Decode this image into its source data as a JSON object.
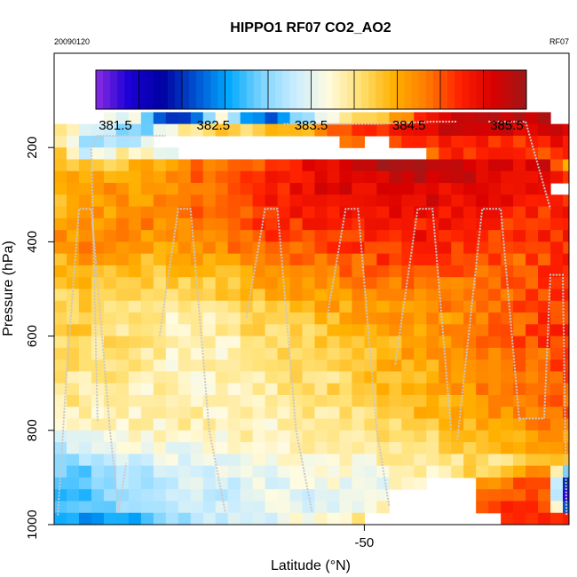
{
  "chart_data": {
    "type": "heatmap",
    "title": "HIPPO1 RF07 CO2_AO2",
    "date_label": "20090120",
    "flight_label": "RF07",
    "xlabel": "Latitude (°N)",
    "ylabel": "Pressure (hPa)",
    "xlim": [
      -25.0,
      -66.5
    ],
    "ylim": [
      1000,
      0
    ],
    "x_ticks": [
      -50
    ],
    "y_ticks": [
      200,
      400,
      600,
      800,
      1000
    ],
    "colorbar": {
      "ticks": [
        381.5,
        382.5,
        383.5,
        384.5,
        385.5
      ],
      "range": [
        381.3,
        385.7
      ],
      "colors": [
        "#8a2be2",
        "#1a00d6",
        "#0000a0",
        "#0050d0",
        "#00a8ff",
        "#7cd4ff",
        "#c8ecff",
        "#fffbe0",
        "#ffe070",
        "#ffb000",
        "#ff7a00",
        "#ff2000",
        "#d80000",
        "#a01818"
      ]
    },
    "grid": {
      "lat_start": -25.0,
      "lat_step": -1.0,
      "ncols": 42,
      "p_edges": [
        125,
        150,
        175,
        200,
        225,
        250,
        275,
        300,
        325,
        350,
        375,
        400,
        425,
        450,
        475,
        500,
        525,
        550,
        575,
        600,
        625,
        650,
        675,
        700,
        725,
        750,
        775,
        800,
        825,
        850,
        875,
        900,
        925,
        950,
        975,
        1000
      ],
      "row_profiles": [
        [
          null,
          null,
          383.7,
          383.4,
          382.0,
          382.2,
          383.8,
          382.5,
          382.2,
          383.1,
          383.6,
          384.1,
          384.2,
          384.5,
          385.3,
          385.4,
          385.5,
          385.5,
          385.5,
          null
        ],
        [
          383.8,
          383.6,
          383.2,
          382.9,
          383.6,
          384.0,
          384.2,
          384.1,
          384.3,
          384.3,
          384.6,
          385.0,
          385.0,
          385.2,
          385.3,
          385.4,
          385.4,
          385.4,
          385.4,
          385.4
        ],
        [
          384.0,
          383.1,
          383.3,
          383.4,
          null,
          null,
          null,
          null,
          null,
          null,
          null,
          384.6,
          null,
          384.9,
          385.1,
          385.1,
          385.1,
          385.0,
          385.1,
          385.1
        ],
        [
          384.2,
          383.3,
          383.8,
          383.9,
          383.5,
          null,
          null,
          null,
          null,
          null,
          null,
          null,
          null,
          null,
          384.8,
          385.0,
          385.0,
          384.9,
          384.9,
          385.0
        ],
        [
          384.3,
          384.1,
          384.2,
          384.3,
          384.5,
          384.7,
          384.7,
          384.8,
          384.8,
          385.2,
          385.3,
          385.5,
          385.6,
          385.6,
          385.5,
          385.4,
          385.3,
          385.3,
          385.4,
          384.5
        ],
        [
          384.4,
          384.3,
          384.4,
          384.5,
          384.6,
          384.7,
          384.8,
          384.9,
          385.0,
          385.2,
          385.3,
          385.4,
          385.4,
          385.5,
          385.5,
          385.4,
          385.3,
          385.3,
          385.2,
          384.8
        ],
        [
          384.3,
          384.4,
          384.5,
          384.4,
          384.5,
          384.6,
          384.8,
          384.9,
          385.0,
          385.2,
          385.3,
          385.3,
          385.3,
          385.3,
          385.3,
          385.3,
          385.2,
          385.1,
          385.1,
          null
        ],
        [
          384.3,
          384.5,
          384.5,
          384.5,
          384.6,
          384.7,
          384.9,
          385.0,
          385.1,
          385.2,
          385.2,
          385.3,
          385.3,
          385.3,
          385.3,
          385.2,
          385.2,
          385.1,
          385.0,
          385.0
        ],
        [
          384.3,
          384.5,
          384.5,
          384.5,
          384.6,
          384.7,
          384.8,
          384.9,
          385.0,
          385.1,
          385.1,
          385.2,
          385.2,
          385.2,
          385.2,
          385.1,
          385.1,
          385.0,
          385.0,
          385.1
        ],
        [
          384.4,
          384.6,
          384.5,
          384.6,
          384.6,
          384.7,
          384.8,
          384.9,
          384.9,
          385.0,
          385.1,
          385.1,
          385.1,
          385.1,
          385.1,
          385.1,
          385.0,
          385.0,
          385.0,
          385.0
        ],
        [
          384.5,
          384.6,
          384.6,
          384.5,
          384.5,
          384.6,
          384.7,
          384.8,
          384.9,
          384.9,
          385.0,
          385.0,
          385.1,
          385.1,
          385.1,
          385.0,
          385.0,
          384.9,
          385.0,
          385.0
        ],
        [
          384.4,
          384.6,
          384.5,
          384.4,
          384.4,
          384.5,
          384.6,
          384.7,
          384.8,
          384.8,
          384.9,
          384.9,
          385.0,
          385.0,
          385.0,
          385.0,
          384.9,
          384.9,
          384.9,
          385.0
        ],
        [
          384.3,
          384.5,
          384.4,
          384.3,
          384.3,
          384.4,
          384.5,
          384.6,
          384.7,
          384.7,
          384.8,
          384.8,
          384.9,
          384.9,
          384.9,
          384.9,
          384.9,
          384.8,
          384.9,
          385.0
        ],
        [
          384.2,
          384.4,
          384.3,
          384.2,
          384.2,
          384.3,
          384.3,
          384.4,
          384.5,
          384.6,
          384.7,
          384.7,
          384.8,
          384.8,
          384.8,
          384.8,
          384.8,
          384.8,
          384.9,
          385.0
        ],
        [
          384.1,
          384.3,
          384.2,
          384.1,
          384.1,
          384.1,
          384.2,
          384.3,
          384.4,
          384.5,
          384.6,
          384.6,
          384.7,
          384.7,
          384.7,
          384.7,
          384.8,
          384.8,
          384.9,
          385.0
        ],
        [
          384.0,
          384.2,
          384.1,
          384.0,
          384.0,
          384.0,
          384.1,
          384.2,
          384.3,
          384.4,
          384.5,
          384.5,
          384.6,
          384.6,
          384.7,
          384.7,
          384.7,
          384.8,
          384.9,
          385.0
        ],
        [
          384.0,
          384.1,
          384.0,
          383.9,
          383.9,
          383.9,
          384.0,
          384.1,
          384.2,
          384.3,
          384.4,
          384.4,
          384.5,
          384.5,
          384.6,
          384.6,
          384.7,
          384.8,
          384.9,
          385.0
        ],
        [
          384.1,
          384.1,
          384.0,
          383.9,
          383.8,
          383.8,
          383.9,
          384.0,
          384.1,
          384.2,
          384.3,
          384.4,
          384.4,
          384.5,
          384.5,
          384.6,
          384.7,
          384.8,
          384.9,
          385.0
        ],
        [
          384.1,
          384.1,
          384.0,
          383.9,
          383.8,
          383.8,
          383.9,
          384.0,
          384.1,
          384.1,
          384.2,
          384.3,
          384.4,
          384.4,
          384.5,
          384.6,
          384.7,
          384.8,
          384.9,
          385.0
        ],
        [
          384.0,
          384.0,
          384.0,
          383.9,
          383.8,
          383.8,
          383.8,
          383.9,
          384.0,
          384.1,
          384.2,
          384.2,
          384.3,
          384.4,
          384.5,
          384.6,
          384.7,
          384.8,
          384.9,
          384.9
        ],
        [
          384.0,
          384.0,
          383.9,
          383.9,
          383.8,
          383.8,
          383.8,
          383.9,
          384.0,
          384.0,
          384.1,
          384.2,
          384.3,
          384.4,
          384.5,
          384.6,
          384.6,
          384.7,
          384.8,
          384.9
        ],
        [
          384.0,
          384.0,
          383.9,
          383.9,
          383.8,
          383.8,
          383.8,
          383.9,
          383.9,
          384.0,
          384.1,
          384.2,
          384.3,
          384.4,
          384.4,
          384.5,
          384.6,
          384.7,
          384.8,
          384.9
        ],
        [
          384.0,
          383.9,
          383.9,
          383.9,
          383.8,
          383.8,
          383.8,
          383.8,
          383.9,
          384.0,
          384.0,
          384.1,
          384.2,
          384.3,
          384.4,
          384.5,
          384.6,
          384.7,
          384.8,
          384.8
        ],
        [
          383.9,
          383.9,
          383.9,
          383.8,
          383.8,
          383.8,
          383.8,
          383.8,
          383.9,
          383.9,
          384.0,
          384.1,
          384.2,
          384.3,
          384.4,
          384.5,
          384.6,
          384.6,
          384.7,
          384.8
        ],
        [
          383.9,
          383.9,
          383.8,
          383.8,
          383.8,
          383.8,
          383.8,
          383.8,
          383.9,
          383.9,
          384.0,
          384.1,
          384.1,
          384.2,
          384.3,
          384.4,
          384.5,
          384.6,
          384.7,
          384.8
        ],
        [
          383.8,
          383.8,
          383.8,
          383.8,
          383.8,
          383.8,
          383.8,
          383.8,
          383.8,
          383.9,
          383.9,
          384.0,
          384.1,
          384.2,
          384.3,
          384.4,
          384.5,
          384.6,
          384.7,
          384.8
        ],
        [
          383.7,
          383.7,
          383.7,
          383.8,
          383.8,
          383.8,
          383.8,
          383.8,
          383.8,
          383.8,
          383.9,
          383.9,
          384.0,
          384.1,
          384.2,
          384.3,
          384.4,
          384.5,
          384.6,
          384.6
        ],
        [
          383.6,
          383.6,
          383.7,
          383.7,
          383.7,
          383.7,
          383.7,
          383.8,
          383.8,
          383.8,
          383.8,
          383.9,
          384.0,
          384.0,
          384.1,
          384.2,
          384.3,
          384.4,
          384.5,
          384.5
        ],
        [
          383.3,
          383.4,
          383.5,
          383.6,
          383.6,
          383.6,
          383.7,
          383.7,
          383.7,
          383.8,
          383.8,
          383.8,
          383.9,
          384.0,
          384.0,
          384.1,
          384.2,
          384.3,
          384.4,
          384.4
        ],
        [
          383.1,
          383.2,
          383.3,
          383.4,
          383.5,
          383.5,
          383.6,
          383.6,
          383.6,
          383.7,
          383.7,
          383.7,
          383.8,
          383.8,
          383.9,
          384.0,
          384.0,
          384.1,
          384.2,
          384.3
        ],
        [
          382.9,
          383.0,
          383.2,
          383.3,
          383.4,
          383.4,
          383.5,
          383.5,
          383.6,
          383.6,
          383.6,
          383.7,
          383.7,
          383.8,
          383.8,
          384.0,
          384.2,
          384.4,
          384.6,
          383.0
        ],
        [
          382.8,
          382.9,
          383.1,
          383.2,
          383.3,
          383.4,
          383.4,
          383.5,
          383.5,
          383.5,
          383.6,
          383.6,
          383.6,
          383.7,
          null,
          null,
          384.5,
          384.8,
          385.0,
          382.0
        ],
        [
          382.8,
          382.9,
          383.0,
          383.2,
          383.3,
          383.3,
          383.4,
          383.4,
          383.5,
          383.5,
          383.5,
          383.6,
          383.6,
          null,
          null,
          null,
          384.6,
          384.9,
          385.1,
          381.6
        ],
        [
          382.9,
          383.0,
          383.1,
          383.2,
          383.3,
          383.3,
          383.4,
          383.4,
          383.5,
          383.5,
          383.5,
          383.6,
          383.7,
          null,
          null,
          null,
          384.7,
          385.0,
          385.2,
          382.2
        ],
        [
          382.8,
          382.6,
          382.6,
          382.8,
          383.0,
          383.2,
          383.3,
          383.4,
          383.5,
          383.6,
          383.7,
          383.9,
          null,
          null,
          null,
          null,
          null,
          385.0,
          385.2,
          385.1
        ]
      ]
    },
    "flight_track_note": "grey profile lines (aircraft track) overlaid"
  }
}
